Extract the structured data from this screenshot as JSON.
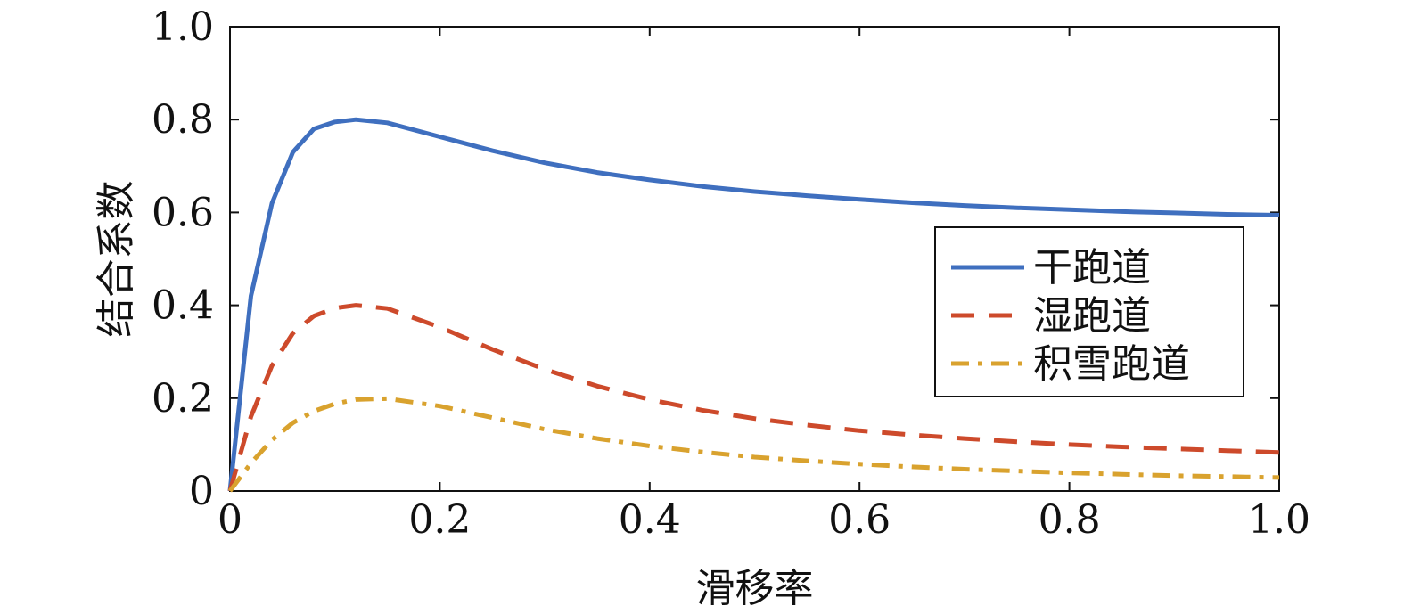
{
  "chart_data": {
    "type": "line",
    "title": "",
    "xlabel": "滑移率",
    "ylabel": "结合系数",
    "xlim": [
      0,
      1.0
    ],
    "ylim": [
      0,
      1.0
    ],
    "xticks": [
      0,
      0.2,
      0.4,
      0.6,
      0.8,
      1.0
    ],
    "xtick_labels": [
      "0",
      "0.2",
      "0.4",
      "0.6",
      "0.8",
      "1.0"
    ],
    "yticks": [
      0,
      0.2,
      0.4,
      0.6,
      0.8,
      1.0
    ],
    "ytick_labels": [
      "0",
      "0.2",
      "0.4",
      "0.6",
      "0.8",
      "1.0"
    ],
    "grid": false,
    "legend_position": "right",
    "x": [
      0,
      0.02,
      0.04,
      0.06,
      0.08,
      0.1,
      0.12,
      0.15,
      0.2,
      0.25,
      0.3,
      0.35,
      0.4,
      0.45,
      0.5,
      0.55,
      0.6,
      0.65,
      0.7,
      0.75,
      0.8,
      0.85,
      0.9,
      0.95,
      1.0
    ],
    "series": [
      {
        "name": "干跑道",
        "color": "#3f6fbf",
        "dash": "solid",
        "values": [
          0,
          0.42,
          0.62,
          0.73,
          0.78,
          0.795,
          0.8,
          0.793,
          0.763,
          0.733,
          0.707,
          0.686,
          0.67,
          0.656,
          0.645,
          0.636,
          0.628,
          0.621,
          0.615,
          0.61,
          0.606,
          0.602,
          0.599,
          0.596,
          0.594
        ]
      },
      {
        "name": "湿跑道",
        "color": "#cd4a2b",
        "dash": "dashed",
        "values": [
          0,
          0.16,
          0.27,
          0.34,
          0.377,
          0.394,
          0.4,
          0.393,
          0.353,
          0.305,
          0.262,
          0.226,
          0.197,
          0.174,
          0.156,
          0.142,
          0.13,
          0.121,
          0.113,
          0.106,
          0.1,
          0.095,
          0.091,
          0.087,
          0.083
        ]
      },
      {
        "name": "积雪跑道",
        "color": "#d9a22e",
        "dash": "dashdot",
        "values": [
          0,
          0.06,
          0.11,
          0.147,
          0.172,
          0.188,
          0.197,
          0.199,
          0.183,
          0.158,
          0.133,
          0.113,
          0.097,
          0.084,
          0.073,
          0.065,
          0.058,
          0.052,
          0.047,
          0.043,
          0.039,
          0.036,
          0.033,
          0.031,
          0.029
        ]
      }
    ]
  }
}
